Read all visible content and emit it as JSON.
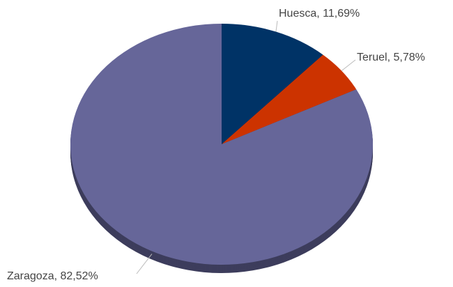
{
  "chart_data": {
    "type": "pie",
    "values": [
      11.69,
      5.78,
      82.52
    ],
    "value_labels": [
      "Huesca, 11,69%",
      "Teruel, 5,78%",
      "Zaragoza, 82,52%"
    ],
    "colors": [
      "#003366",
      "#cc3300",
      "#666699"
    ]
  }
}
